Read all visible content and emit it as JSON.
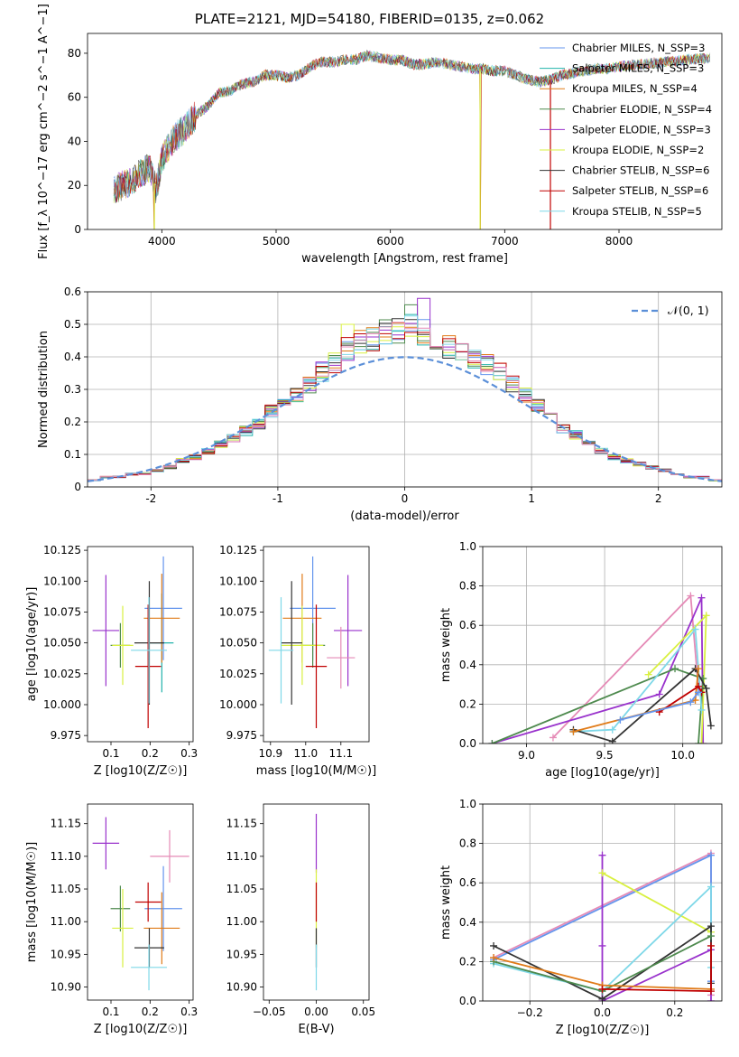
{
  "figure": {
    "title": "PLATE=2121, MJD=54180, FIBERID=0135, z=0.062"
  },
  "chart_data": [
    {
      "id": "spectrum",
      "type": "line",
      "title": "",
      "xlabel": "wavelength [Angstrom, rest frame]",
      "ylabel": "Flux [f_λ 10^−17 erg cm^−2 s^−1 A^−1]",
      "xlim": [
        3350,
        8900
      ],
      "ylim": [
        0,
        89
      ],
      "xticks": [
        4000,
        5000,
        6000,
        7000,
        8000
      ],
      "yticks": [
        0,
        20,
        40,
        60,
        80
      ],
      "grid": false,
      "legend_position": "top-right",
      "envelope": {
        "x": [
          3580,
          3700,
          3800,
          3900,
          3950,
          4000,
          4100,
          4200,
          4300,
          4400,
          4500,
          4600,
          4700,
          4800,
          4900,
          5000,
          5100,
          5200,
          5300,
          5400,
          5500,
          5600,
          5700,
          5800,
          5900,
          6000,
          6100,
          6200,
          6300,
          6400,
          6500,
          6600,
          6700,
          6800,
          6900,
          7000,
          7100,
          7200,
          7300,
          7400,
          7500,
          7600,
          7700,
          7800,
          7900,
          8000,
          8200,
          8400,
          8600,
          8800
        ],
        "y": [
          18,
          21,
          25,
          28,
          18,
          32,
          41,
          46,
          52,
          56,
          62,
          63,
          66,
          67,
          70,
          70,
          69,
          70,
          74,
          76,
          76,
          77,
          77,
          79,
          78,
          77,
          77,
          75,
          75,
          76,
          75,
          74,
          73,
          73,
          72,
          72,
          70,
          68,
          67,
          68,
          70,
          71,
          72,
          73,
          73,
          74,
          75,
          76,
          77,
          78
        ]
      },
      "line_dips": [
        {
          "x": 3935,
          "y": 0
        },
        {
          "x": 6785,
          "y": 0
        },
        {
          "x": 7400,
          "y": 0
        }
      ],
      "series": [
        {
          "name": "Chabrier MILES, N_SSP=3",
          "color": "#6495ed"
        },
        {
          "name": "Salpeter MILES, N_SSP=3",
          "color": "#20b2aa"
        },
        {
          "name": "Kroupa MILES, N_SSP=4",
          "color": "#e07b18"
        },
        {
          "name": "Chabrier ELODIE, N_SSP=4",
          "color": "#4e8a4e"
        },
        {
          "name": "Salpeter ELODIE, N_SSP=3",
          "color": "#9932cc"
        },
        {
          "name": "Kroupa ELODIE, N_SSP=2",
          "color": "#d9f040"
        },
        {
          "name": "Chabrier STELIB, N_SSP=6",
          "color": "#333333"
        },
        {
          "name": "Salpeter STELIB, N_SSP=6",
          "color": "#c00000"
        },
        {
          "name": "Kroupa STELIB, N_SSP=5",
          "color": "#7fd8e8"
        }
      ]
    },
    {
      "id": "residuals",
      "type": "line",
      "title": "",
      "xlabel": "(data-model)/error",
      "ylabel": "Normed distribution",
      "xlim": [
        -2.5,
        2.5
      ],
      "ylim": [
        0,
        0.6
      ],
      "xticks": [
        -2,
        -1,
        0,
        1,
        2
      ],
      "yticks": [
        0.0,
        0.1,
        0.2,
        0.3,
        0.4,
        0.5,
        0.6
      ],
      "grid": true,
      "legend_position": "top-right",
      "reference": {
        "name": "𝒩(0, 1)",
        "color": "#5b8fd8"
      },
      "bin_width": 0.1,
      "histogram_template": [
        0.02,
        0.03,
        0.03,
        0.04,
        0.04,
        0.05,
        0.06,
        0.08,
        0.09,
        0.11,
        0.13,
        0.15,
        0.17,
        0.19,
        0.23,
        0.25,
        0.28,
        0.31,
        0.35,
        0.38,
        0.42,
        0.44,
        0.45,
        0.47,
        0.48,
        0.5,
        0.47,
        0.45,
        0.43,
        0.41,
        0.39,
        0.37,
        0.35,
        0.31,
        0.28,
        0.25,
        0.22,
        0.18,
        0.16,
        0.13,
        0.11,
        0.09,
        0.08,
        0.07,
        0.06,
        0.05,
        0.04,
        0.03,
        0.03,
        0.02
      ],
      "peak_highlights": [
        {
          "series": "Salpeter ELODIE",
          "bin_start": 0.1,
          "value": 0.58
        },
        {
          "series": "Chabrier ELODIE",
          "bin_start": 0.0,
          "value": 0.56
        },
        {
          "series": "Kroupa ELODIE",
          "bin_start": -0.5,
          "value": 0.5
        }
      ]
    },
    {
      "id": "age_vs_Z",
      "type": "scatter",
      "xlabel": "Z [log10(Z/Z☉)]",
      "ylabel": "age  [log10(age/yr)]",
      "xlim": [
        0.04,
        0.31
      ],
      "ylim": [
        9.97,
        10.128
      ],
      "xticks": [
        "0.1",
        "0.2",
        "0.3"
      ],
      "yticks": [
        "9.975",
        "10.000",
        "10.025",
        "10.050",
        "10.075",
        "10.100",
        "10.125"
      ],
      "points": [
        {
          "x": 0.234,
          "y": 10.078,
          "xerr": 0.048,
          "yerr": 0.042,
          "color": "#6495ed"
        },
        {
          "x": 0.23,
          "y": 10.05,
          "xerr": 0.03,
          "yerr": 0.04,
          "color": "#20b2aa"
        },
        {
          "x": 0.23,
          "y": 10.07,
          "xerr": 0.046,
          "yerr": 0.036,
          "color": "#e07b18"
        },
        {
          "x": 0.124,
          "y": 10.048,
          "xerr": 0.025,
          "yerr": 0.018,
          "color": "#4e8a4e"
        },
        {
          "x": 0.087,
          "y": 10.06,
          "xerr": 0.034,
          "yerr": 0.045,
          "color": "#9932cc"
        },
        {
          "x": 0.13,
          "y": 10.048,
          "xerr": 0.027,
          "yerr": 0.032,
          "color": "#d9f040"
        },
        {
          "x": 0.198,
          "y": 10.05,
          "xerr": 0.038,
          "yerr": 0.05,
          "color": "#333333"
        },
        {
          "x": 0.195,
          "y": 10.031,
          "xerr": 0.033,
          "yerr": 0.05,
          "color": "#c00000"
        },
        {
          "x": 0.197,
          "y": 10.044,
          "xerr": 0.046,
          "yerr": 0.043,
          "color": "#7fd8e8"
        }
      ]
    },
    {
      "id": "age_vs_mass",
      "type": "scatter",
      "xlabel": "mass [log10(M/M☉)]",
      "ylabel": "",
      "xlim": [
        10.88,
        11.18
      ],
      "ylim": [
        9.97,
        10.128
      ],
      "xticks": [
        "10.9",
        "11.0",
        "11.1"
      ],
      "yticks": [
        "9.975",
        "10.000",
        "10.025",
        "10.050",
        "10.075",
        "10.100",
        "10.125"
      ],
      "points": [
        {
          "x": 11.02,
          "y": 10.078,
          "xerr": 0.065,
          "yerr": 0.042,
          "color": "#6495ed"
        },
        {
          "x": 10.99,
          "y": 10.07,
          "xerr": 0.055,
          "yerr": 0.036,
          "color": "#e07b18"
        },
        {
          "x": 11.02,
          "y": 10.048,
          "xerr": 0.035,
          "yerr": 0.018,
          "color": "#4e8a4e"
        },
        {
          "x": 11.12,
          "y": 10.06,
          "xerr": 0.04,
          "yerr": 0.045,
          "color": "#9932cc"
        },
        {
          "x": 10.99,
          "y": 10.048,
          "xerr": 0.06,
          "yerr": 0.032,
          "color": "#d9f040"
        },
        {
          "x": 10.96,
          "y": 10.05,
          "xerr": 0.03,
          "yerr": 0.05,
          "color": "#333333"
        },
        {
          "x": 11.03,
          "y": 10.031,
          "xerr": 0.03,
          "yerr": 0.05,
          "color": "#c00000"
        },
        {
          "x": 10.93,
          "y": 10.044,
          "xerr": 0.035,
          "yerr": 0.043,
          "color": "#7fd8e8"
        },
        {
          "x": 11.1,
          "y": 10.038,
          "xerr": 0.04,
          "yerr": 0.025,
          "color": "#e58ab6"
        }
      ]
    },
    {
      "id": "weight_vs_age",
      "type": "line",
      "xlabel": "age  [log10(age/yr)]",
      "ylabel": "mass weight",
      "xlim": [
        8.72,
        10.25
      ],
      "ylim": [
        0,
        1
      ],
      "xticks": [
        "9.0",
        "9.5",
        "10.0"
      ],
      "yticks": [
        "0.0",
        "0.2",
        "0.4",
        "0.6",
        "0.8",
        "1.0"
      ],
      "grid": true,
      "series": [
        {
          "color": "#e58ab6",
          "points": [
            [
              9.17,
              0.03
            ],
            [
              10.05,
              0.75
            ],
            [
              10.1,
              0.28
            ]
          ]
        },
        {
          "color": "#9932cc",
          "points": [
            [
              8.78,
              0.0
            ],
            [
              9.85,
              0.25
            ],
            [
              10.12,
              0.74
            ],
            [
              10.13,
              0.0
            ]
          ]
        },
        {
          "color": "#d9f040",
          "points": [
            [
              9.78,
              0.35
            ],
            [
              10.15,
              0.65
            ],
            [
              10.12,
              0.0
            ]
          ]
        },
        {
          "color": "#4e8a4e",
          "points": [
            [
              8.78,
              0.0
            ],
            [
              9.95,
              0.38
            ],
            [
              10.13,
              0.33
            ],
            [
              10.1,
              0.0
            ]
          ]
        },
        {
          "color": "#7fd8e8",
          "points": [
            [
              9.3,
              0.06
            ],
            [
              9.55,
              0.07
            ],
            [
              10.08,
              0.58
            ],
            [
              10.12,
              0.17
            ]
          ]
        },
        {
          "color": "#333333",
          "points": [
            [
              9.3,
              0.07
            ],
            [
              9.55,
              0.01
            ],
            [
              10.08,
              0.38
            ],
            [
              10.15,
              0.28
            ],
            [
              10.18,
              0.09
            ]
          ]
        },
        {
          "color": "#e07b18",
          "points": [
            [
              9.3,
              0.06
            ],
            [
              10.08,
              0.22
            ],
            [
              10.1,
              0.38
            ]
          ]
        },
        {
          "color": "#c00000",
          "points": [
            [
              9.85,
              0.16
            ],
            [
              10.1,
              0.29
            ],
            [
              10.12,
              0.26
            ]
          ]
        },
        {
          "color": "#6495ed",
          "points": [
            [
              9.6,
              0.12
            ],
            [
              10.05,
              0.21
            ],
            [
              10.1,
              0.26
            ]
          ]
        }
      ]
    },
    {
      "id": "mass_vs_Z",
      "type": "scatter",
      "xlabel": "Z [log10(Z/Z☉)]",
      "ylabel": "mass [log10(M/M☉)]",
      "xlim": [
        0.04,
        0.31
      ],
      "ylim": [
        10.88,
        11.18
      ],
      "xticks": [
        "0.1",
        "0.2",
        "0.3"
      ],
      "yticks": [
        "10.90",
        "10.95",
        "11.00",
        "11.05",
        "11.10",
        "11.15"
      ],
      "points": [
        {
          "x": 0.234,
          "y": 11.02,
          "xerr": 0.048,
          "yerr": 0.065,
          "color": "#6495ed"
        },
        {
          "x": 0.23,
          "y": 10.99,
          "xerr": 0.046,
          "yerr": 0.055,
          "color": "#e07b18"
        },
        {
          "x": 0.124,
          "y": 11.02,
          "xerr": 0.025,
          "yerr": 0.035,
          "color": "#4e8a4e"
        },
        {
          "x": 0.087,
          "y": 11.12,
          "xerr": 0.034,
          "yerr": 0.04,
          "color": "#9932cc"
        },
        {
          "x": 0.13,
          "y": 10.99,
          "xerr": 0.027,
          "yerr": 0.06,
          "color": "#d9f040"
        },
        {
          "x": 0.198,
          "y": 10.96,
          "xerr": 0.038,
          "yerr": 0.03,
          "color": "#333333"
        },
        {
          "x": 0.195,
          "y": 11.03,
          "xerr": 0.033,
          "yerr": 0.03,
          "color": "#c00000"
        },
        {
          "x": 0.197,
          "y": 10.93,
          "xerr": 0.046,
          "yerr": 0.035,
          "color": "#7fd8e8"
        },
        {
          "x": 0.25,
          "y": 11.1,
          "xerr": 0.05,
          "yerr": 0.04,
          "color": "#e58ab6"
        }
      ]
    },
    {
      "id": "mass_vs_EBV",
      "type": "scatter",
      "xlabel": "E(B-V)",
      "ylabel": "",
      "xlim": [
        -0.056,
        0.056
      ],
      "ylim": [
        10.88,
        11.18
      ],
      "xticks": [
        "−0.05",
        "0.00",
        "0.05"
      ],
      "yticks": [
        "10.90",
        "10.95",
        "11.00",
        "11.05",
        "11.10",
        "11.15"
      ],
      "points": [
        {
          "x": 0.0,
          "y": 11.12,
          "yerr": 0.045,
          "color": "#9932cc"
        },
        {
          "x": 0.0,
          "y": 11.02,
          "yerr": 0.06,
          "color": "#d9f040"
        },
        {
          "x": 0.0,
          "y": 11.03,
          "yerr": 0.03,
          "color": "#c00000"
        },
        {
          "x": 0.0,
          "y": 10.96,
          "yerr": 0.03,
          "color": "#333333"
        },
        {
          "x": 0.0,
          "y": 10.93,
          "yerr": 0.035,
          "color": "#7fd8e8"
        }
      ]
    },
    {
      "id": "weight_vs_Z",
      "type": "line",
      "xlabel": "Z [log10(Z/Z☉)]",
      "ylabel": "mass weight",
      "xlim": [
        -0.33,
        0.33
      ],
      "ylim": [
        0,
        1
      ],
      "xticks": [
        "−0.2",
        "0.0",
        "0.2"
      ],
      "yticks": [
        "0.0",
        "0.2",
        "0.4",
        "0.6",
        "0.8",
        "1.0"
      ],
      "grid": true,
      "series": [
        {
          "color": "#e58ab6",
          "points": [
            [
              -0.3,
              0.22
            ],
            [
              0.3,
              0.75
            ],
            [
              0.3,
              0.03
            ]
          ]
        },
        {
          "color": "#6495ed",
          "points": [
            [
              -0.3,
              0.21
            ],
            [
              0.3,
              0.74
            ],
            [
              0.3,
              0.1
            ]
          ]
        },
        {
          "color": "#9932cc",
          "points": [
            [
              0.0,
              0.74
            ],
            [
              0.0,
              0.28
            ],
            [
              0.0,
              0.0
            ],
            [
              0.3,
              0.26
            ],
            [
              0.3,
              0.0
            ]
          ]
        },
        {
          "color": "#d9f040",
          "points": [
            [
              0.0,
              0.65
            ],
            [
              0.3,
              0.35
            ]
          ]
        },
        {
          "color": "#7fd8e8",
          "points": [
            [
              -0.3,
              0.19
            ],
            [
              0.0,
              0.05
            ],
            [
              0.3,
              0.58
            ],
            [
              0.3,
              0.17
            ]
          ]
        },
        {
          "color": "#333333",
          "points": [
            [
              -0.3,
              0.28
            ],
            [
              0.0,
              0.01
            ],
            [
              0.3,
              0.38
            ],
            [
              0.3,
              0.09
            ]
          ]
        },
        {
          "color": "#4e8a4e",
          "points": [
            [
              -0.3,
              0.2
            ],
            [
              0.0,
              0.05
            ],
            [
              0.3,
              0.33
            ]
          ]
        },
        {
          "color": "#e07b18",
          "points": [
            [
              -0.3,
              0.22
            ],
            [
              0.0,
              0.08
            ],
            [
              0.3,
              0.06
            ]
          ]
        },
        {
          "color": "#c00000",
          "points": [
            [
              0.0,
              0.06
            ],
            [
              0.3,
              0.05
            ],
            [
              0.3,
              0.28
            ]
          ]
        }
      ]
    }
  ]
}
